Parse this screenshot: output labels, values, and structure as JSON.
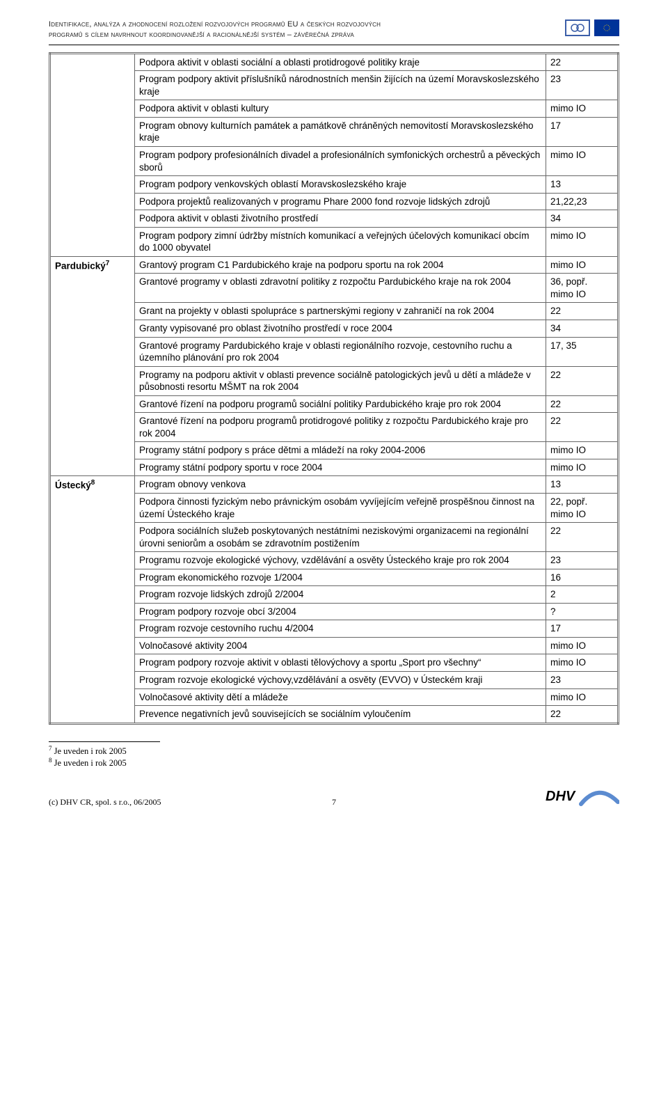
{
  "header": {
    "title_line1": "Identifikace, analýza a zhodnocení rozložení rozvojových programů EU a českých rozvojových",
    "title_line2": "programů s cílem navrhnout koordinovanější a racionálnější systém – závěrečná zpráva"
  },
  "regions": [
    {
      "label": "",
      "superscript": "",
      "rows": [
        {
          "text": "Podpora aktivit v oblasti sociální a oblasti protidrogové politiky kraje",
          "val": "22"
        },
        {
          "text": "Program podpory aktivit příslušníků národnostních menšin žijících na území Moravskoslezského kraje",
          "val": "23"
        },
        {
          "text": "Podpora aktivit v oblasti kultury",
          "val": "mimo IO"
        },
        {
          "text": "Program obnovy kulturních památek a památkově chráněných nemovitostí Moravskoslezského kraje",
          "val": "17"
        },
        {
          "text": "Program podpory profesionálních divadel a profesionálních symfonických orchestrů a pěveckých sborů",
          "val": "mimo IO"
        },
        {
          "text": "Program podpory venkovských oblastí Moravskoslezského kraje",
          "val": "13"
        },
        {
          "text": "Podpora projektů realizovaných v programu Phare 2000 fond rozvoje lidských zdrojů",
          "val": "21,22,23"
        },
        {
          "text": "Podpora aktivit v oblasti životního prostředí",
          "val": "34"
        },
        {
          "text": "Program podpory zimní údržby místních komunikací a veřejných účelových komunikací obcím do 1000 obyvatel",
          "val": "mimo IO"
        }
      ]
    },
    {
      "label": "Pardubický",
      "superscript": "7",
      "rows": [
        {
          "text": "Grantový program C1 Pardubického kraje na podporu sportu na rok 2004",
          "val": "mimo IO"
        },
        {
          "text": "Grantové programy v oblasti zdravotní politiky z rozpočtu Pardubického kraje na rok 2004",
          "val": "36, popř. mimo IO"
        },
        {
          "text": "Grant na projekty v oblasti spolupráce s partnerskými regiony v zahraničí na rok 2004",
          "val": "22"
        },
        {
          "text": "Granty vypisované pro oblast životního prostředí v roce 2004",
          "val": "34"
        },
        {
          "text": "Grantové programy Pardubického kraje v oblasti regionálního rozvoje, cestovního ruchu a územního plánování pro rok 2004",
          "val": "17, 35"
        },
        {
          "text": "Programy na podporu aktivit v oblasti prevence sociálně patologických jevů u dětí a mládeže v působnosti resortu MŠMT na rok 2004",
          "val": "22"
        },
        {
          "text": "Grantové řízení na podporu programů sociální politiky Pardubického kraje pro rok 2004",
          "val": "22"
        },
        {
          "text": "Grantové řízení na podporu programů protidrogové politiky z rozpočtu Pardubického kraje pro rok 2004",
          "val": "22"
        },
        {
          "text": "Programy státní podpory s práce dětmi a mládeží na roky 2004-2006",
          "val": "mimo IO"
        },
        {
          "text": "Programy státní podpory sportu v roce 2004",
          "val": "mimo IO"
        }
      ]
    },
    {
      "label": "Ústecký",
      "superscript": "8",
      "rows": [
        {
          "text": "Program obnovy venkova",
          "val": "13"
        },
        {
          "text": "Podpora činnosti fyzickým nebo právnickým osobám vyvíjejícím veřejně prospěšnou činnost na území Ústeckého kraje",
          "val": "22, popř. mimo IO"
        },
        {
          "text": "Podpora sociálních služeb poskytovaných nestátními neziskovými organizacemi na regionální úrovni seniorům a osobám se zdravotním postižením",
          "val": "22"
        },
        {
          "text": "Programu rozvoje ekologické výchovy, vzdělávání a osvěty Ústeckého kraje pro rok 2004",
          "val": "23"
        },
        {
          "text": "Program ekonomického rozvoje 1/2004",
          "val": "16"
        },
        {
          "text": "Program rozvoje lidských zdrojů 2/2004",
          "val": "2"
        },
        {
          "text": "Program podpory rozvoje obcí 3/2004",
          "val": "?"
        },
        {
          "text": "Program rozvoje cestovního ruchu 4/2004",
          "val": "17"
        },
        {
          "text": "Volnočasové aktivity 2004",
          "val": "mimo IO"
        },
        {
          "text": "Program podpory rozvoje aktivit v oblasti tělovýchovy a sportu „Sport pro všechny“",
          "val": "mimo IO"
        },
        {
          "text": "Program rozvoje ekologické výchovy,vzdělávání a osvěty (EVVO) v Ústeckém kraji",
          "val": "23"
        },
        {
          "text": "Volnočasové aktivity dětí a mládeže",
          "val": "mimo IO"
        },
        {
          "text": "Prevence negativních jevů souvisejících se sociálním vyloučením",
          "val": "22"
        }
      ]
    }
  ],
  "footnotes": [
    {
      "num": "7",
      "text": "Je uveden i rok 2005"
    },
    {
      "num": "8",
      "text": "Je uveden i rok 2005"
    }
  ],
  "footer": {
    "copyright": "(c) DHV CR, spol. s r.o., 06/2005",
    "page_number": "7"
  },
  "colors": {
    "border": "#666666",
    "accent": "#3b5ea8",
    "eu_blue": "#003399",
    "eu_gold": "#ffcc00",
    "logo_arc": "#5b8bd0"
  }
}
